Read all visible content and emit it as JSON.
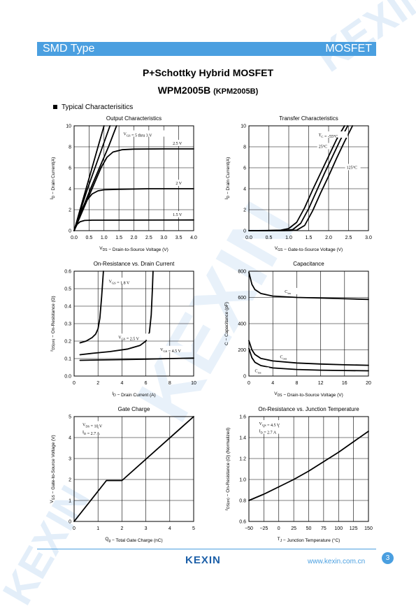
{
  "header": {
    "left": "SMD Type",
    "right": "MOSFET"
  },
  "title": "P+Schottky Hybrid MOSFET",
  "part": {
    "name": "WPM2005B",
    "alt": "(KPM2005B)"
  },
  "section": "Typical  Characterisitics",
  "watermark": "KEXIN",
  "footer": {
    "logo": "KEXIN",
    "url": "www.kexin.com.cn",
    "page": "3"
  },
  "colors": {
    "accent": "#4a9fe0",
    "logo": "#1c5fa8"
  },
  "chart_data": [
    {
      "id": "output",
      "type": "line",
      "title": "Output Characteristics",
      "xlabel": "V_DS - Drain-to-Source Voltage (V)",
      "ylabel": "I_D - Drain Current(A)",
      "xlim": [
        0,
        4
      ],
      "ylim": [
        0,
        10
      ],
      "xticks": [
        "0.0",
        "0.5",
        "1.0",
        "1.5",
        "2.0",
        "2.5",
        "3.0",
        "3.5",
        "4.0"
      ],
      "yticks": [
        "0",
        "2",
        "4",
        "6",
        "8",
        "10"
      ],
      "grid": true,
      "annotations": [
        {
          "text": "V_GS = 5 thru 3 V",
          "x": 1.65,
          "y": 9.1
        },
        {
          "text": "2.5 V",
          "x": 3.3,
          "y": 8.2
        },
        {
          "text": "2 V",
          "x": 3.4,
          "y": 4.4
        },
        {
          "text": "1.5 V",
          "x": 3.3,
          "y": 1.4
        }
      ],
      "series": [
        {
          "values": [
            [
              0,
              0
            ],
            [
              0.1,
              1
            ],
            [
              0.2,
              2
            ],
            [
              0.4,
              4
            ],
            [
              0.6,
              6
            ],
            [
              0.8,
              8
            ],
            [
              1.0,
              10
            ]
          ]
        },
        {
          "values": [
            [
              0,
              0
            ],
            [
              0.11,
              1
            ],
            [
              0.22,
              2
            ],
            [
              0.45,
              4
            ],
            [
              0.7,
              6
            ],
            [
              0.95,
              8
            ],
            [
              1.2,
              10
            ]
          ]
        },
        {
          "values": [
            [
              0,
              0
            ],
            [
              0.13,
              1
            ],
            [
              0.27,
              2
            ],
            [
              0.55,
              4
            ],
            [
              0.85,
              6
            ],
            [
              1.15,
              8
            ],
            [
              1.42,
              10
            ]
          ]
        },
        {
          "values": [
            [
              0,
              0
            ],
            [
              0.15,
              1
            ],
            [
              0.3,
              2
            ],
            [
              0.6,
              4
            ],
            [
              0.9,
              6
            ],
            [
              1.1,
              7
            ],
            [
              1.3,
              7.5
            ],
            [
              1.6,
              7.72
            ],
            [
              2.0,
              7.78
            ],
            [
              3.0,
              7.8
            ],
            [
              4.0,
              7.8
            ]
          ]
        },
        {
          "values": [
            [
              0,
              0
            ],
            [
              0.12,
              1
            ],
            [
              0.25,
              2
            ],
            [
              0.4,
              2.8
            ],
            [
              0.6,
              3.5
            ],
            [
              0.8,
              3.8
            ],
            [
              1.0,
              3.9
            ],
            [
              1.5,
              3.95
            ],
            [
              2.5,
              4.0
            ],
            [
              4.0,
              4.0
            ]
          ]
        },
        {
          "values": [
            [
              0,
              0
            ],
            [
              0.05,
              0.3
            ],
            [
              0.1,
              0.6
            ],
            [
              0.2,
              0.85
            ],
            [
              0.35,
              0.97
            ],
            [
              0.6,
              1.0
            ],
            [
              4.0,
              1.02
            ]
          ]
        }
      ]
    },
    {
      "id": "transfer",
      "type": "line",
      "title": "Transfer Characteristics",
      "xlabel": "V_GS - Gate-to-Source Voltage (V)",
      "ylabel": "I_D - Drain Current(A)",
      "xlim": [
        0,
        3
      ],
      "ylim": [
        0,
        10
      ],
      "xticks": [
        "0.0",
        "0.5",
        "1.0",
        "1.5",
        "2.0",
        "2.5",
        "3.0"
      ],
      "yticks": [
        "0",
        "2",
        "4",
        "6",
        "8",
        "10"
      ],
      "grid": true,
      "annotations": [
        {
          "text": "T_C = -55°C",
          "x": 1.75,
          "y": 9.0
        },
        {
          "text": "25°C",
          "x": 1.75,
          "y": 7.9
        },
        {
          "text": "125°C",
          "x": 2.45,
          "y": 5.9
        }
      ],
      "series": [
        {
          "values": [
            [
              0,
              0
            ],
            [
              0.5,
              0.02
            ],
            [
              0.8,
              0.05
            ],
            [
              1.0,
              0.2
            ],
            [
              1.2,
              0.8
            ],
            [
              1.4,
              2.2
            ],
            [
              1.6,
              3.9
            ],
            [
              1.8,
              5.5
            ],
            [
              2.0,
              7.1
            ],
            [
              2.2,
              8.7
            ],
            [
              2.4,
              10
            ]
          ]
        },
        {
          "values": [
            [
              0,
              0
            ],
            [
              0.5,
              0.01
            ],
            [
              0.9,
              0.02
            ],
            [
              1.1,
              0.1
            ],
            [
              1.3,
              0.7
            ],
            [
              1.5,
              2.1
            ],
            [
              1.7,
              3.8
            ],
            [
              1.9,
              5.5
            ],
            [
              2.1,
              7.1
            ],
            [
              2.3,
              8.7
            ],
            [
              2.48,
              10
            ]
          ]
        },
        {
          "values": [
            [
              0,
              0
            ],
            [
              1.0,
              0.01
            ],
            [
              1.2,
              0.05
            ],
            [
              1.4,
              0.5
            ],
            [
              1.6,
              1.9
            ],
            [
              1.8,
              3.6
            ],
            [
              2.0,
              5.2
            ],
            [
              2.2,
              6.9
            ],
            [
              2.4,
              8.5
            ],
            [
              2.6,
              10
            ]
          ]
        }
      ]
    },
    {
      "id": "ron_id",
      "type": "line",
      "title": "On-Resistance vs. Drain Current",
      "xlabel": "I_D - Drain Current (A)",
      "ylabel": "r_DS(on) - On-Resistance (Ω)",
      "xlim": [
        0,
        10
      ],
      "ylim": [
        0,
        0.6
      ],
      "xticks": [
        "0",
        "2",
        "4",
        "6",
        "8",
        "10"
      ],
      "yticks": [
        "0.0",
        "0.1",
        "0.2",
        "0.3",
        "0.4",
        "0.5",
        "0.6"
      ],
      "grid": true,
      "annotations": [
        {
          "text": "V_GS = 1.8 V",
          "x": 2.9,
          "y": 0.535
        },
        {
          "text": "V_GS = 2.5 V",
          "x": 3.7,
          "y": 0.215
        },
        {
          "text": "V_GS = 4.5 V",
          "x": 7.2,
          "y": 0.145
        }
      ],
      "series": [
        {
          "values": [
            [
              0.5,
              0.19
            ],
            [
              1.0,
              0.2
            ],
            [
              1.5,
              0.22
            ],
            [
              1.8,
              0.24
            ],
            [
              2.0,
              0.27
            ],
            [
              2.15,
              0.33
            ],
            [
              2.3,
              0.45
            ],
            [
              2.45,
              0.6
            ]
          ]
        },
        {
          "values": [
            [
              0.5,
              0.122
            ],
            [
              1.5,
              0.13
            ],
            [
              3.0,
              0.14
            ],
            [
              4.5,
              0.155
            ],
            [
              5.5,
              0.175
            ],
            [
              6.0,
              0.2
            ],
            [
              6.3,
              0.25
            ],
            [
              6.45,
              0.35
            ],
            [
              6.55,
              0.5
            ],
            [
              6.6,
              0.6
            ]
          ]
        },
        {
          "values": [
            [
              0.5,
              0.09
            ],
            [
              2,
              0.092
            ],
            [
              4,
              0.094
            ],
            [
              6,
              0.097
            ],
            [
              8,
              0.1
            ],
            [
              10,
              0.103
            ]
          ]
        }
      ]
    },
    {
      "id": "capacitance",
      "type": "line",
      "title": "Capacitance",
      "xlabel": "V_DS - Drain-to-Source Voltage (V)",
      "ylabel": "C - Capacitance (pF)",
      "xlim": [
        0,
        20
      ],
      "ylim": [
        0,
        800
      ],
      "xticks": [
        "0",
        "4",
        "8",
        "12",
        "16",
        "20"
      ],
      "yticks": [
        "0",
        "200",
        "400",
        "600",
        "800"
      ],
      "grid": true,
      "annotations": [
        {
          "text": "C_iss",
          "x": 6.0,
          "y": 635
        },
        {
          "text": "C_oss",
          "x": 5.2,
          "y": 135
        },
        {
          "text": "C_rss",
          "x": 1.0,
          "y": 30
        }
      ],
      "series": [
        {
          "values": [
            [
              0,
              790
            ],
            [
              0.5,
              700
            ],
            [
              1,
              660
            ],
            [
              2,
              630
            ],
            [
              4,
              610
            ],
            [
              8,
              600
            ],
            [
              12,
              595
            ],
            [
              16,
              590
            ],
            [
              20,
              585
            ]
          ]
        },
        {
          "values": [
            [
              0,
              270
            ],
            [
              0.5,
              200
            ],
            [
              1,
              165
            ],
            [
              2,
              135
            ],
            [
              4,
              115
            ],
            [
              8,
              100
            ],
            [
              12,
              92
            ],
            [
              16,
              86
            ],
            [
              20,
              82
            ]
          ]
        },
        {
          "values": [
            [
              0,
              210
            ],
            [
              0.5,
              140
            ],
            [
              1,
              105
            ],
            [
              2,
              80
            ],
            [
              4,
              62
            ],
            [
              8,
              50
            ],
            [
              12,
              45
            ],
            [
              16,
              42
            ],
            [
              20,
              40
            ]
          ]
        }
      ]
    },
    {
      "id": "gate_charge",
      "type": "line",
      "title": "Gate Charge",
      "xlabel": "Q_g - Total Gate Charge (nC)",
      "ylabel": "V_GS - Gate-to-Source Voltage (V)",
      "xlim": [
        0,
        5
      ],
      "ylim": [
        0,
        5
      ],
      "xticks": [
        "0",
        "1",
        "2",
        "3",
        "4",
        "5"
      ],
      "yticks": [
        "0",
        "1",
        "2",
        "3",
        "4",
        "5"
      ],
      "grid": true,
      "annotations": [
        {
          "text": "V_DS = 10 V",
          "x": 0.35,
          "y": 4.55
        },
        {
          "text": "I_D = 2.7 A",
          "x": 0.35,
          "y": 4.2
        }
      ],
      "series": [
        {
          "values": [
            [
              0,
              0
            ],
            [
              1.35,
              1.95
            ],
            [
              2.0,
              1.95
            ],
            [
              5.0,
              5.0
            ]
          ]
        }
      ]
    },
    {
      "id": "ron_tj",
      "type": "line",
      "title": "On-Resistance vs. Junction Temperature",
      "xlabel": "T_J - Junction Temperature (°C)",
      "ylabel": "r_DS(on) - On-Resistance (Ω) (Normalized)",
      "xlim": [
        -50,
        150
      ],
      "ylim": [
        0.6,
        1.6
      ],
      "xticks": [
        "−50",
        "−25",
        "0",
        "25",
        "50",
        "75",
        "100",
        "125",
        "150"
      ],
      "yticks": [
        "0.6",
        "0.8",
        "1.0",
        "1.2",
        "1.4",
        "1.6"
      ],
      "grid": true,
      "annotations": [
        {
          "text": "V_GS = 4.5 V",
          "x": -33,
          "y": 1.52
        },
        {
          "text": "I_D = 2.7 A",
          "x": -33,
          "y": 1.45
        }
      ],
      "series": [
        {
          "values": [
            [
              -50,
              0.8
            ],
            [
              -25,
              0.86
            ],
            [
              0,
              0.93
            ],
            [
              25,
              1.0
            ],
            [
              50,
              1.08
            ],
            [
              75,
              1.17
            ],
            [
              100,
              1.26
            ],
            [
              125,
              1.36
            ],
            [
              150,
              1.46
            ]
          ]
        }
      ]
    }
  ]
}
